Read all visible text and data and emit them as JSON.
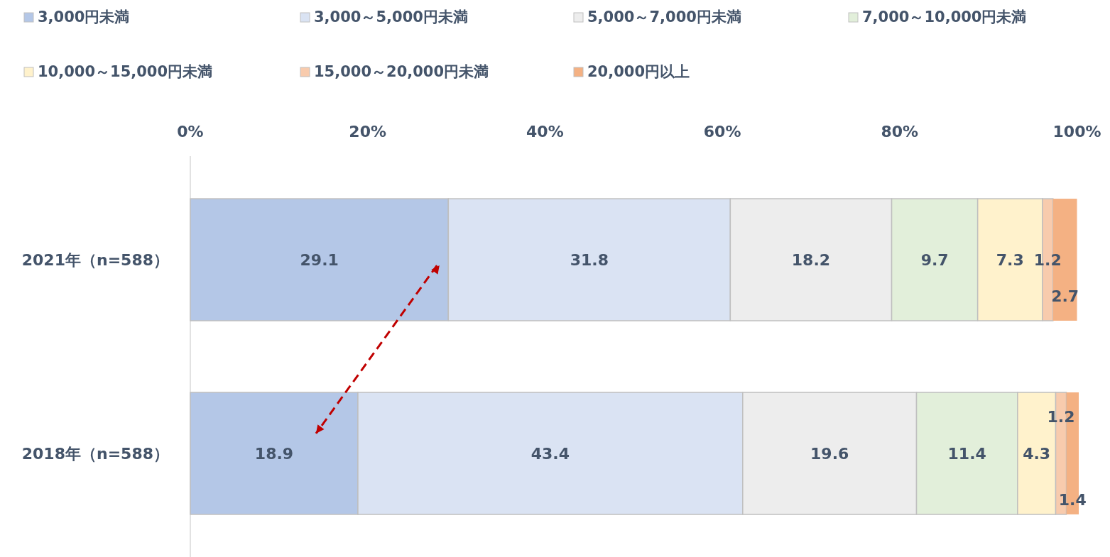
{
  "chart_data": {
    "type": "bar",
    "orientation": "horizontal",
    "stacked": true,
    "data_labels": true,
    "legend": "top",
    "grid": false,
    "categories": [
      "2021年（n=588）",
      "2018年（n=588）"
    ],
    "xlim": [
      0,
      100.2
    ],
    "xticks": [
      {
        "value": 0,
        "label": "0%"
      },
      {
        "value": 20,
        "label": "20%"
      },
      {
        "value": 40,
        "label": "40%"
      },
      {
        "value": 60,
        "label": "60%"
      },
      {
        "value": 80,
        "label": "80%"
      },
      {
        "value": 100,
        "label": "100%"
      }
    ],
    "series": [
      {
        "name": "3,000円未満",
        "color": "#b4c7e7",
        "values": [
          29.1,
          18.9
        ]
      },
      {
        "name": "3,000～5,000円未満",
        "color": "#dae3f3",
        "values": [
          31.8,
          43.4
        ]
      },
      {
        "name": "5,000～7,000円未満",
        "color": "#ededed",
        "values": [
          18.2,
          19.6
        ]
      },
      {
        "name": "7,000～10,000円未満",
        "color": "#e2efda",
        "values": [
          9.7,
          11.4
        ]
      },
      {
        "name": "10,000～15,000円未満",
        "color": "#fff2cc",
        "values": [
          7.3,
          4.3
        ]
      },
      {
        "name": "15,000～20,000円未満",
        "color": "#f8cbad",
        "values": [
          1.2,
          1.2
        ]
      },
      {
        "name": "20,000円以上",
        "color": "#f4b183",
        "values": [
          2.7,
          1.4
        ]
      }
    ]
  }
}
